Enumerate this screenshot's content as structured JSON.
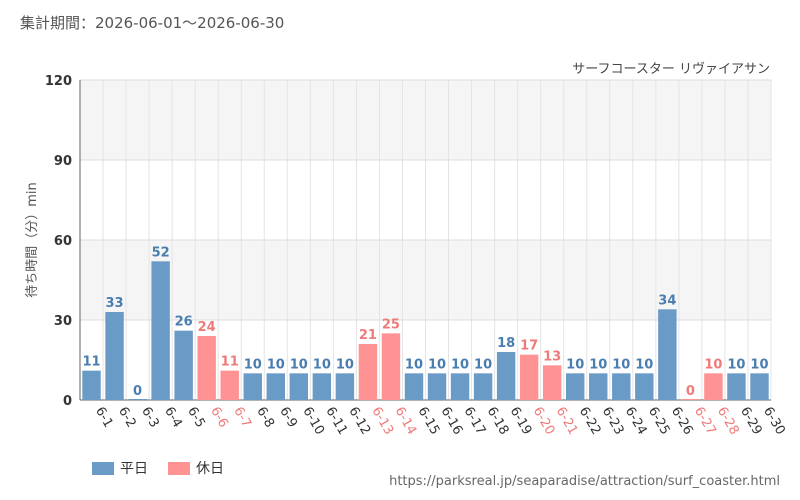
{
  "period": "集計期間：2026-06-01～2026-06-30",
  "source_url": "https://parksreal.jp/seaparadise/attraction/surf_coaster.html",
  "colors": {
    "weekday": "#6a9bc7",
    "holiday": "#ff9393",
    "weekday_text": "#4a7db0",
    "holiday_text": "#f07a7a"
  },
  "chart_data": {
    "type": "bar",
    "title": "サーフコースター リヴァイアサン",
    "ylabel": "待ち時間（分）min",
    "xlabel": "",
    "ylim": [
      0,
      120
    ],
    "yticks": [
      0,
      30,
      60,
      90,
      120
    ],
    "grid": true,
    "legend": "bottom-left",
    "categories": [
      "6-1",
      "6-2",
      "6-3",
      "6-4",
      "6-5",
      "6-6",
      "6-7",
      "6-8",
      "6-9",
      "6-10",
      "6-11",
      "6-12",
      "6-13",
      "6-14",
      "6-15",
      "6-16",
      "6-17",
      "6-18",
      "6-19",
      "6-20",
      "6-21",
      "6-22",
      "6-23",
      "6-24",
      "6-25",
      "6-26",
      "6-27",
      "6-28",
      "6-29",
      "6-30"
    ],
    "values": [
      11,
      33,
      0,
      52,
      26,
      24,
      11,
      10,
      10,
      10,
      10,
      10,
      21,
      25,
      10,
      10,
      10,
      10,
      18,
      17,
      13,
      10,
      10,
      10,
      10,
      34,
      0,
      10,
      10,
      10
    ],
    "day_type": [
      "平日",
      "平日",
      "平日",
      "平日",
      "平日",
      "休日",
      "休日",
      "平日",
      "平日",
      "平日",
      "平日",
      "平日",
      "休日",
      "休日",
      "平日",
      "平日",
      "平日",
      "平日",
      "平日",
      "休日",
      "休日",
      "平日",
      "平日",
      "平日",
      "平日",
      "平日",
      "休日",
      "休日",
      "平日",
      "平日"
    ],
    "series": [
      {
        "name": "平日",
        "color": "#6a9bc7"
      },
      {
        "name": "休日",
        "color": "#ff9393"
      }
    ]
  }
}
